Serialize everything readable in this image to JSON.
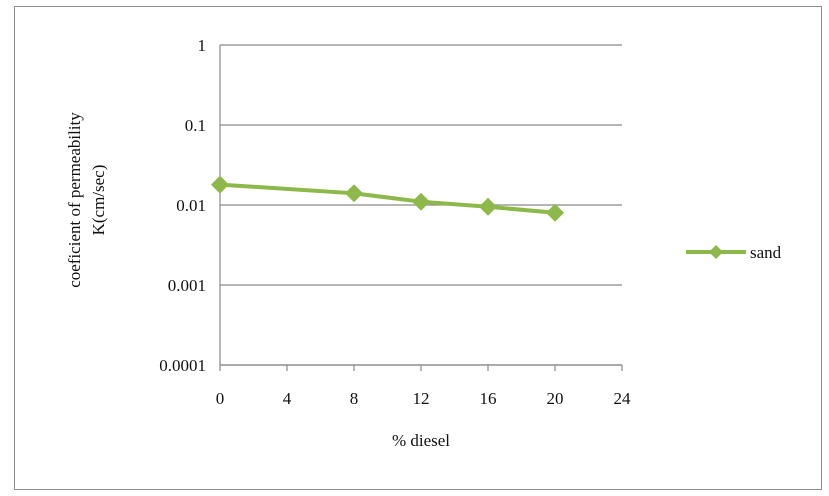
{
  "chart_data": {
    "type": "line",
    "xlabel": "% diesel",
    "ylabel_lines": [
      "coeficient of permeability",
      "K(cm/sec)"
    ],
    "x_ticks": [
      0,
      4,
      8,
      12,
      16,
      20,
      24
    ],
    "x_tick_labels": [
      "0",
      "4",
      "8",
      "12",
      "16",
      "20",
      "24"
    ],
    "xlim": [
      0,
      24
    ],
    "y_scale": "log",
    "ylim": [
      0.0001,
      1
    ],
    "y_ticks": [
      1,
      0.1,
      0.01,
      0.001,
      0.0001
    ],
    "y_tick_labels": [
      "1",
      "0.1",
      "0.01",
      "0.001",
      "0.0001"
    ],
    "grid": "horizontal",
    "legend_position": "right",
    "series": [
      {
        "name": "sand",
        "color": "#8db84a",
        "marker": "diamond",
        "x": [
          0,
          8,
          12,
          16,
          20
        ],
        "y": [
          0.018,
          0.014,
          0.011,
          0.0095,
          0.008
        ]
      }
    ]
  }
}
